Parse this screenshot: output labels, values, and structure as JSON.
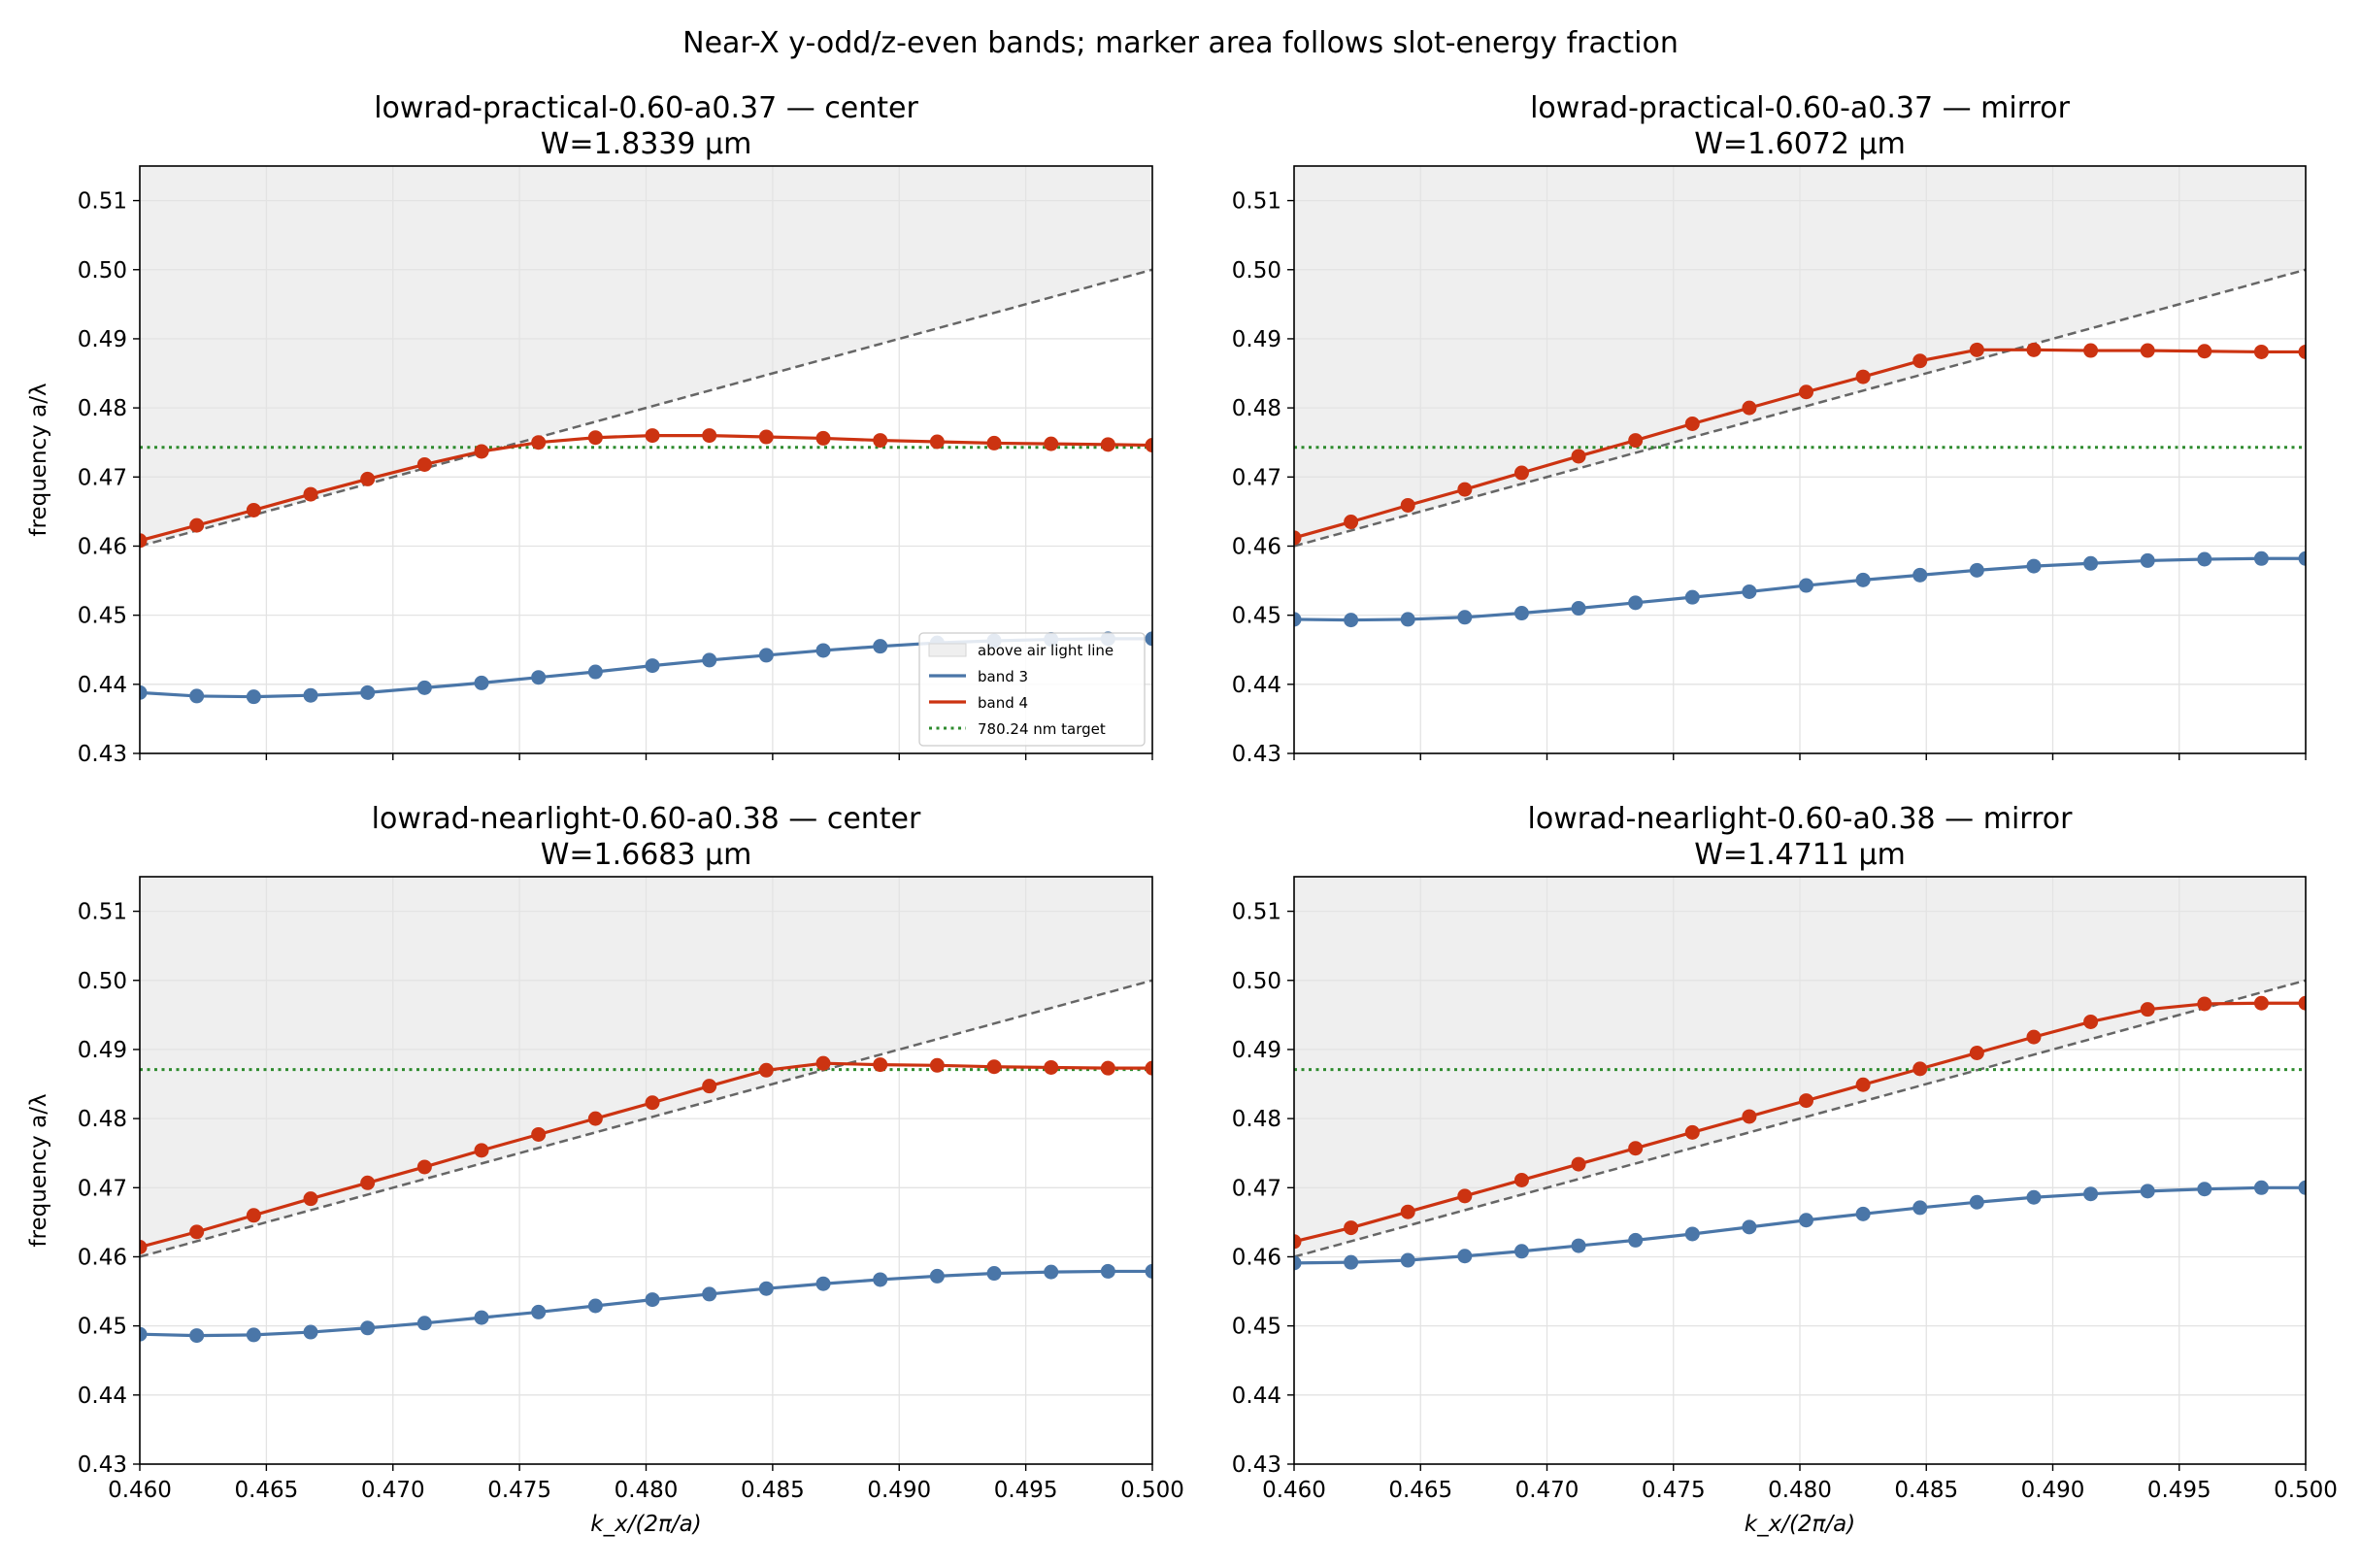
{
  "suptitle": "Near-X y-odd/z-even bands; marker area follows slot-energy fraction",
  "axes_common": {
    "xlabel": "k_x/(2π/a)",
    "ylabel": "frequency a/λ",
    "xlim": [
      0.46,
      0.5
    ],
    "ylim": [
      0.43,
      0.515
    ],
    "xticks": [
      "0.460",
      "0.465",
      "0.470",
      "0.475",
      "0.480",
      "0.485",
      "0.490",
      "0.495",
      "0.500"
    ],
    "yticks": [
      "0.43",
      "0.44",
      "0.45",
      "0.46",
      "0.47",
      "0.48",
      "0.49",
      "0.50",
      "0.51"
    ],
    "grid": true
  },
  "legend": {
    "placement": "lower-right",
    "entries": [
      "above air light line",
      "band 3",
      "band 4",
      "780.24 nm target"
    ]
  },
  "colors": {
    "band3": "#4a76a8",
    "band4": "#cc3311",
    "target": "#2e8b2e",
    "light_line": "#666666",
    "air_region": "#efefef"
  },
  "chart_data": [
    {
      "type": "line",
      "title_line1": "lowrad-practical-0.60-a0.37 — center",
      "title_line2": "W=1.8339 µm",
      "target": 0.4743,
      "x": [
        0.46,
        0.46225,
        0.4645,
        0.46675,
        0.469,
        0.47125,
        0.4735,
        0.47575,
        0.478,
        0.48025,
        0.4825,
        0.48475,
        0.487,
        0.48925,
        0.4915,
        0.49375,
        0.496,
        0.49825,
        0.5
      ],
      "series": [
        {
          "name": "band 3",
          "values": [
            0.4388,
            0.4383,
            0.4382,
            0.4384,
            0.4388,
            0.4395,
            0.4402,
            0.441,
            0.4418,
            0.4427,
            0.4435,
            0.4442,
            0.4449,
            0.4455,
            0.446,
            0.4463,
            0.4465,
            0.4466,
            0.4466
          ]
        },
        {
          "name": "band 4",
          "values": [
            0.4608,
            0.463,
            0.4652,
            0.4675,
            0.4697,
            0.4718,
            0.4737,
            0.475,
            0.4757,
            0.476,
            0.476,
            0.4758,
            0.4756,
            0.4753,
            0.4751,
            0.4749,
            0.4748,
            0.4747,
            0.4746
          ]
        }
      ],
      "legend": true
    },
    {
      "type": "line",
      "title_line1": "lowrad-practical-0.60-a0.37 — mirror",
      "title_line2": "W=1.6072 µm",
      "target": 0.4743,
      "x": [
        0.46,
        0.46225,
        0.4645,
        0.46675,
        0.469,
        0.47125,
        0.4735,
        0.47575,
        0.478,
        0.48025,
        0.4825,
        0.48475,
        0.487,
        0.48925,
        0.4915,
        0.49375,
        0.496,
        0.49825,
        0.5
      ],
      "series": [
        {
          "name": "band 3",
          "values": [
            0.4494,
            0.4493,
            0.4494,
            0.4497,
            0.4503,
            0.451,
            0.4518,
            0.4526,
            0.4534,
            0.4543,
            0.4551,
            0.4558,
            0.4565,
            0.4571,
            0.4575,
            0.4579,
            0.4581,
            0.4582,
            0.4582
          ]
        },
        {
          "name": "band 4",
          "values": [
            0.4612,
            0.4635,
            0.4659,
            0.4682,
            0.4706,
            0.473,
            0.4753,
            0.4777,
            0.48,
            0.4823,
            0.4845,
            0.4868,
            0.4884,
            0.4884,
            0.4883,
            0.4883,
            0.4882,
            0.4881,
            0.4881
          ]
        }
      ],
      "legend": false
    },
    {
      "type": "line",
      "title_line1": "lowrad-nearlight-0.60-a0.38 — center",
      "title_line2": "W=1.6683 µm",
      "target": 0.4871,
      "x": [
        0.46,
        0.46225,
        0.4645,
        0.46675,
        0.469,
        0.47125,
        0.4735,
        0.47575,
        0.478,
        0.48025,
        0.4825,
        0.48475,
        0.487,
        0.48925,
        0.4915,
        0.49375,
        0.496,
        0.49825,
        0.5
      ],
      "series": [
        {
          "name": "band 3",
          "values": [
            0.4488,
            0.4486,
            0.4487,
            0.4491,
            0.4497,
            0.4504,
            0.4512,
            0.452,
            0.4529,
            0.4538,
            0.4546,
            0.4554,
            0.4561,
            0.4567,
            0.4572,
            0.4576,
            0.4578,
            0.4579,
            0.4579
          ]
        },
        {
          "name": "band 4",
          "values": [
            0.4614,
            0.4636,
            0.466,
            0.4684,
            0.4707,
            0.473,
            0.4754,
            0.4777,
            0.48,
            0.4823,
            0.4847,
            0.487,
            0.488,
            0.4878,
            0.4877,
            0.4875,
            0.4874,
            0.4873,
            0.4873
          ]
        }
      ],
      "legend": false
    },
    {
      "type": "line",
      "title_line1": "lowrad-nearlight-0.60-a0.38 — mirror",
      "title_line2": "W=1.4711 µm",
      "target": 0.4871,
      "x": [
        0.46,
        0.46225,
        0.4645,
        0.46675,
        0.469,
        0.47125,
        0.4735,
        0.47575,
        0.478,
        0.48025,
        0.4825,
        0.48475,
        0.487,
        0.48925,
        0.4915,
        0.49375,
        0.496,
        0.49825,
        0.5
      ],
      "series": [
        {
          "name": "band 3",
          "values": [
            0.4591,
            0.4592,
            0.4595,
            0.4601,
            0.4608,
            0.4616,
            0.4624,
            0.4633,
            0.4643,
            0.4653,
            0.4662,
            0.4671,
            0.4679,
            0.4686,
            0.4691,
            0.4695,
            0.4698,
            0.47,
            0.47
          ]
        },
        {
          "name": "band 4",
          "values": [
            0.4622,
            0.4642,
            0.4665,
            0.4688,
            0.4711,
            0.4734,
            0.4757,
            0.478,
            0.4803,
            0.4826,
            0.4849,
            0.4872,
            0.4895,
            0.4918,
            0.494,
            0.4958,
            0.4966,
            0.4967,
            0.4967
          ]
        }
      ],
      "legend": false
    }
  ]
}
